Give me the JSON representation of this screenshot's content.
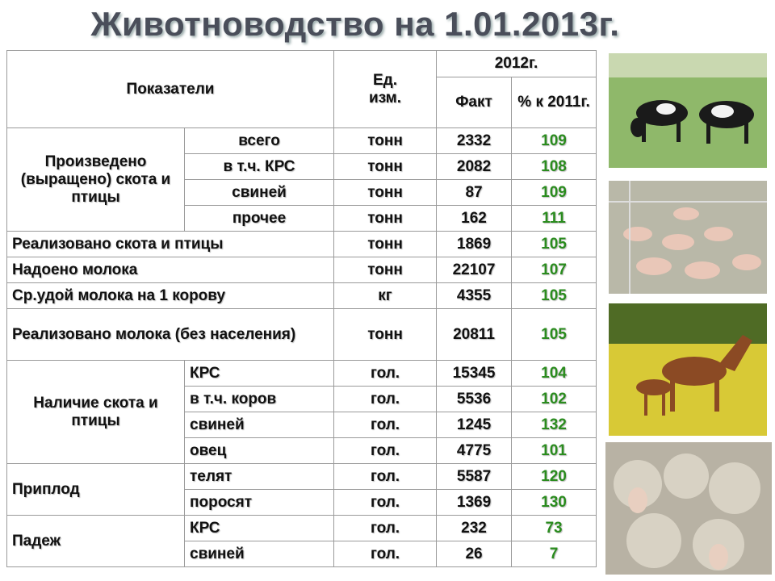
{
  "header": {
    "title": "Животноводство на 1.01.2013г."
  },
  "table": {
    "columns": {
      "indicator": "Показатели",
      "unit": "Ед. изм.",
      "year": "2012г.",
      "fact": "Факт",
      "change": "% к 2011г."
    },
    "groups": [
      {
        "label": "Произведено (выращено) скота и птицы",
        "rows": [
          {
            "item": "всего",
            "unit": "тонн",
            "fact": 2332,
            "change": 109
          },
          {
            "item": "в т.ч. КРС",
            "unit": "тонн",
            "fact": 2082,
            "change": 108
          },
          {
            "item": "свиней",
            "unit": "тонн",
            "fact": 87,
            "change": 109
          },
          {
            "item": "прочее",
            "unit": "тонн",
            "fact": 162,
            "change": 111
          }
        ]
      },
      {
        "label": "Реализовано скота и птицы",
        "unit": "тонн",
        "fact": 1869,
        "change": 105
      },
      {
        "label": "Надоено молока",
        "unit": "тонн",
        "fact": 22107,
        "change": 107
      },
      {
        "label": "Ср.удой молока на 1 корову",
        "unit": "кг",
        "fact": 4355,
        "change": 105
      },
      {
        "label": "Реализовано молока (без населения)",
        "unit": "тонн",
        "fact": 20811,
        "change": 105
      },
      {
        "label": "Наличие скота и птицы",
        "rows": [
          {
            "item": "КРС",
            "unit": "гол.",
            "fact": 15345,
            "change": 104
          },
          {
            "item": "в т.ч. коров",
            "unit": "гол.",
            "fact": 5536,
            "change": 102
          },
          {
            "item": "свиней",
            "unit": "гол.",
            "fact": 1245,
            "change": 132
          },
          {
            "item": "овец",
            "unit": "гол.",
            "fact": 4775,
            "change": 101
          }
        ]
      },
      {
        "label": "Приплод",
        "rows": [
          {
            "item": "телят",
            "unit": "гол.",
            "fact": 5587,
            "change": 120
          },
          {
            "item": "поросят",
            "unit": "гол.",
            "fact": 1369,
            "change": 130
          }
        ]
      },
      {
        "label": "Падеж",
        "rows": [
          {
            "item": "КРС",
            "unit": "гол.",
            "fact": 232,
            "change": 73
          },
          {
            "item": "свиней",
            "unit": "гол.",
            "fact": 26,
            "change": 7
          }
        ]
      }
    ]
  }
}
